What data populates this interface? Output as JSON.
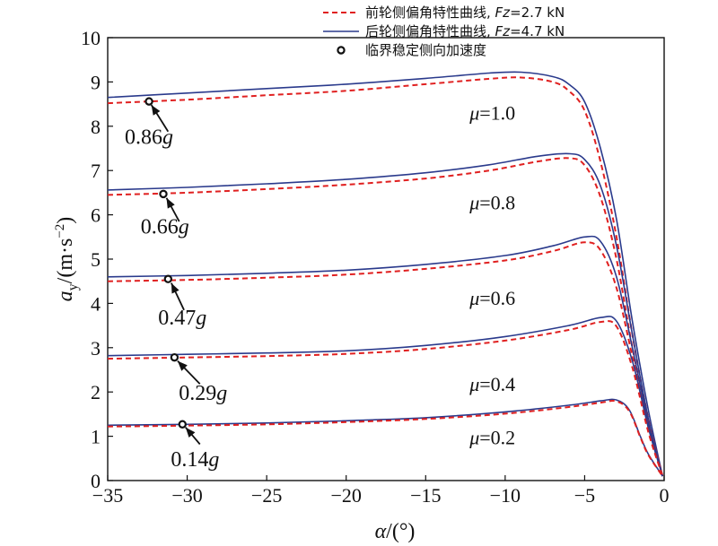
{
  "chart_data": {
    "type": "line",
    "xlabel": "α/(°)",
    "ylabel": "a_y/(m·s^-2)",
    "xlim": [
      -35,
      0
    ],
    "ylim": [
      0,
      10
    ],
    "xticks": [
      -35,
      -30,
      -25,
      -20,
      -15,
      -10,
      -5,
      0
    ],
    "yticks": [
      0,
      1,
      2,
      3,
      4,
      5,
      6,
      7,
      8,
      9,
      10
    ],
    "xtick_labels": [
      "−35",
      "−30",
      "−25",
      "−20",
      "−15",
      "−10",
      "−5",
      "0"
    ],
    "ytick_labels": [
      "0",
      "1",
      "2",
      "3",
      "4",
      "5",
      "6",
      "7",
      "8",
      "9",
      "10"
    ],
    "grid": false,
    "legend_position": "top-right",
    "legend": [
      {
        "label": "前轮侧偏角特性曲线, Fz=2.7 kN",
        "label_main": "前轮侧偏角特性曲线, ",
        "label_var": "Fz",
        "label_rest": "=2.7 kN",
        "style": "dashed",
        "color": "#e02020"
      },
      {
        "label": "后轮侧偏角特性曲线, Fz=4.7 kN",
        "label_main": "后轮侧偏角特性曲线, ",
        "label_var": "Fz",
        "label_rest": "=4.7 kN",
        "style": "solid",
        "color": "#2a3a8c"
      },
      {
        "label": "临界稳定侧向加速度",
        "style": "marker",
        "color": "#111111"
      }
    ],
    "groups": [
      {
        "mu_label": "μ=1.0",
        "mu_var": "μ",
        "mu_value": "=1.0",
        "mu_pos": [
          -10.8,
          8.15
        ],
        "rear": {
          "x": [
            -35,
            -30,
            -25,
            -20,
            -15,
            -11,
            -9,
            -7,
            -6,
            -5,
            -4,
            -3,
            -2,
            -1,
            -0.1
          ],
          "y": [
            8.65,
            8.75,
            8.85,
            8.95,
            9.08,
            9.2,
            9.22,
            9.12,
            8.95,
            8.55,
            7.5,
            5.9,
            3.6,
            1.6,
            0.1
          ]
        },
        "front": {
          "x": [
            -35,
            -30,
            -25,
            -20,
            -15,
            -11,
            -9,
            -7,
            -6,
            -5,
            -4,
            -3,
            -2,
            -1,
            -0.1
          ],
          "y": [
            8.52,
            8.6,
            8.7,
            8.8,
            8.95,
            9.07,
            9.1,
            9.0,
            8.8,
            8.35,
            7.2,
            5.5,
            3.3,
            1.4,
            0.1
          ]
        },
        "point": {
          "x": -32.4,
          "y": 8.56
        },
        "label": {
          "value": "0.86",
          "unit": "g",
          "text": "0.86g",
          "x": -32.4,
          "y": 7.6
        },
        "arrow": {
          "from": [
            -31.2,
            7.88
          ],
          "to": [
            -32.25,
            8.48
          ]
        }
      },
      {
        "mu_label": "μ=0.8",
        "mu_var": "μ",
        "mu_value": "=0.8",
        "mu_pos": [
          -10.8,
          6.12
        ],
        "rear": {
          "x": [
            -35,
            -30,
            -25,
            -20,
            -15,
            -11,
            -8,
            -6,
            -5,
            -4,
            -3,
            -2,
            -1,
            -0.1
          ],
          "y": [
            6.56,
            6.62,
            6.7,
            6.8,
            6.95,
            7.13,
            7.32,
            7.38,
            7.25,
            6.65,
            5.3,
            3.3,
            1.4,
            0.1
          ]
        },
        "front": {
          "x": [
            -35,
            -30,
            -25,
            -20,
            -15,
            -11,
            -8,
            -6,
            -5,
            -4,
            -3,
            -2,
            -1,
            -0.1
          ],
          "y": [
            6.45,
            6.5,
            6.58,
            6.68,
            6.82,
            7.0,
            7.2,
            7.28,
            7.12,
            6.4,
            5.0,
            3.0,
            1.3,
            0.1
          ]
        },
        "point": {
          "x": -31.5,
          "y": 6.47
        },
        "label": {
          "value": "0.66",
          "unit": "g",
          "text": "0.66g",
          "x": -31.4,
          "y": 5.58
        },
        "arrow": {
          "from": [
            -30.5,
            5.85
          ],
          "to": [
            -31.3,
            6.38
          ]
        }
      },
      {
        "mu_label": "μ=0.6",
        "mu_var": "μ",
        "mu_value": "=0.6",
        "mu_pos": [
          -10.8,
          3.97
        ],
        "rear": {
          "x": [
            -35,
            -30,
            -25,
            -20,
            -15,
            -10,
            -7,
            -5,
            -4,
            -3,
            -2,
            -1,
            -0.1
          ],
          "y": [
            4.6,
            4.63,
            4.68,
            4.75,
            4.88,
            5.08,
            5.3,
            5.5,
            5.4,
            4.6,
            3.0,
            1.3,
            0.1
          ]
        },
        "front": {
          "x": [
            -35,
            -30,
            -25,
            -20,
            -15,
            -10,
            -7,
            -5,
            -4,
            -3,
            -2,
            -1,
            -0.1
          ],
          "y": [
            4.5,
            4.53,
            4.58,
            4.65,
            4.78,
            4.97,
            5.18,
            5.38,
            5.2,
            4.35,
            2.8,
            1.2,
            0.1
          ]
        },
        "point": {
          "x": -31.2,
          "y": 4.55
        },
        "label": {
          "value": "0.47",
          "unit": "g",
          "text": "0.47g",
          "x": -30.3,
          "y": 3.52
        },
        "arrow": {
          "from": [
            -30.2,
            3.85
          ],
          "to": [
            -31.0,
            4.46
          ]
        }
      },
      {
        "mu_label": "μ=0.4",
        "mu_var": "μ",
        "mu_value": "=0.4",
        "mu_pos": [
          -10.8,
          2.02
        ],
        "rear": {
          "x": [
            -35,
            -30,
            -25,
            -20,
            -15,
            -10,
            -6,
            -4,
            -3,
            -2,
            -1,
            -0.1
          ],
          "y": [
            2.82,
            2.85,
            2.88,
            2.93,
            3.05,
            3.25,
            3.5,
            3.68,
            3.6,
            2.7,
            1.2,
            0.1
          ]
        },
        "front": {
          "x": [
            -35,
            -30,
            -25,
            -20,
            -15,
            -10,
            -6,
            -4,
            -3,
            -2,
            -1,
            -0.1
          ],
          "y": [
            2.75,
            2.78,
            2.81,
            2.86,
            2.97,
            3.16,
            3.4,
            3.58,
            3.48,
            2.55,
            1.1,
            0.1
          ]
        },
        "point": {
          "x": -30.8,
          "y": 2.78
        },
        "label": {
          "value": "0.29",
          "unit": "g",
          "text": "0.29g",
          "x": -29.0,
          "y": 1.82
        },
        "arrow": {
          "from": [
            -29.2,
            2.18
          ],
          "to": [
            -30.6,
            2.7
          ]
        }
      },
      {
        "mu_label": "μ=0.2",
        "mu_var": "μ",
        "mu_value": "=0.2",
        "mu_pos": [
          -10.8,
          0.82
        ],
        "rear": {
          "x": [
            -35,
            -30,
            -25,
            -20,
            -15,
            -10,
            -6,
            -4,
            -3,
            -2.2,
            -1.5,
            -1,
            -0.1
          ],
          "y": [
            1.25,
            1.27,
            1.3,
            1.35,
            1.42,
            1.55,
            1.7,
            1.8,
            1.82,
            1.6,
            1.0,
            0.6,
            0.1
          ]
        },
        "front": {
          "x": [
            -35,
            -30,
            -25,
            -20,
            -15,
            -10,
            -6,
            -4,
            -3,
            -2.2,
            -1.5,
            -1,
            -0.1
          ],
          "y": [
            1.22,
            1.24,
            1.27,
            1.32,
            1.39,
            1.51,
            1.66,
            1.76,
            1.79,
            1.57,
            0.98,
            0.58,
            0.1
          ]
        },
        "point": {
          "x": -30.3,
          "y": 1.27
        },
        "label": {
          "value": "0.14",
          "unit": "g",
          "text": "0.14g",
          "x": -29.5,
          "y": 0.32
        },
        "arrow": {
          "from": [
            -29.2,
            0.82
          ],
          "to": [
            -30.1,
            1.2
          ]
        }
      }
    ]
  }
}
